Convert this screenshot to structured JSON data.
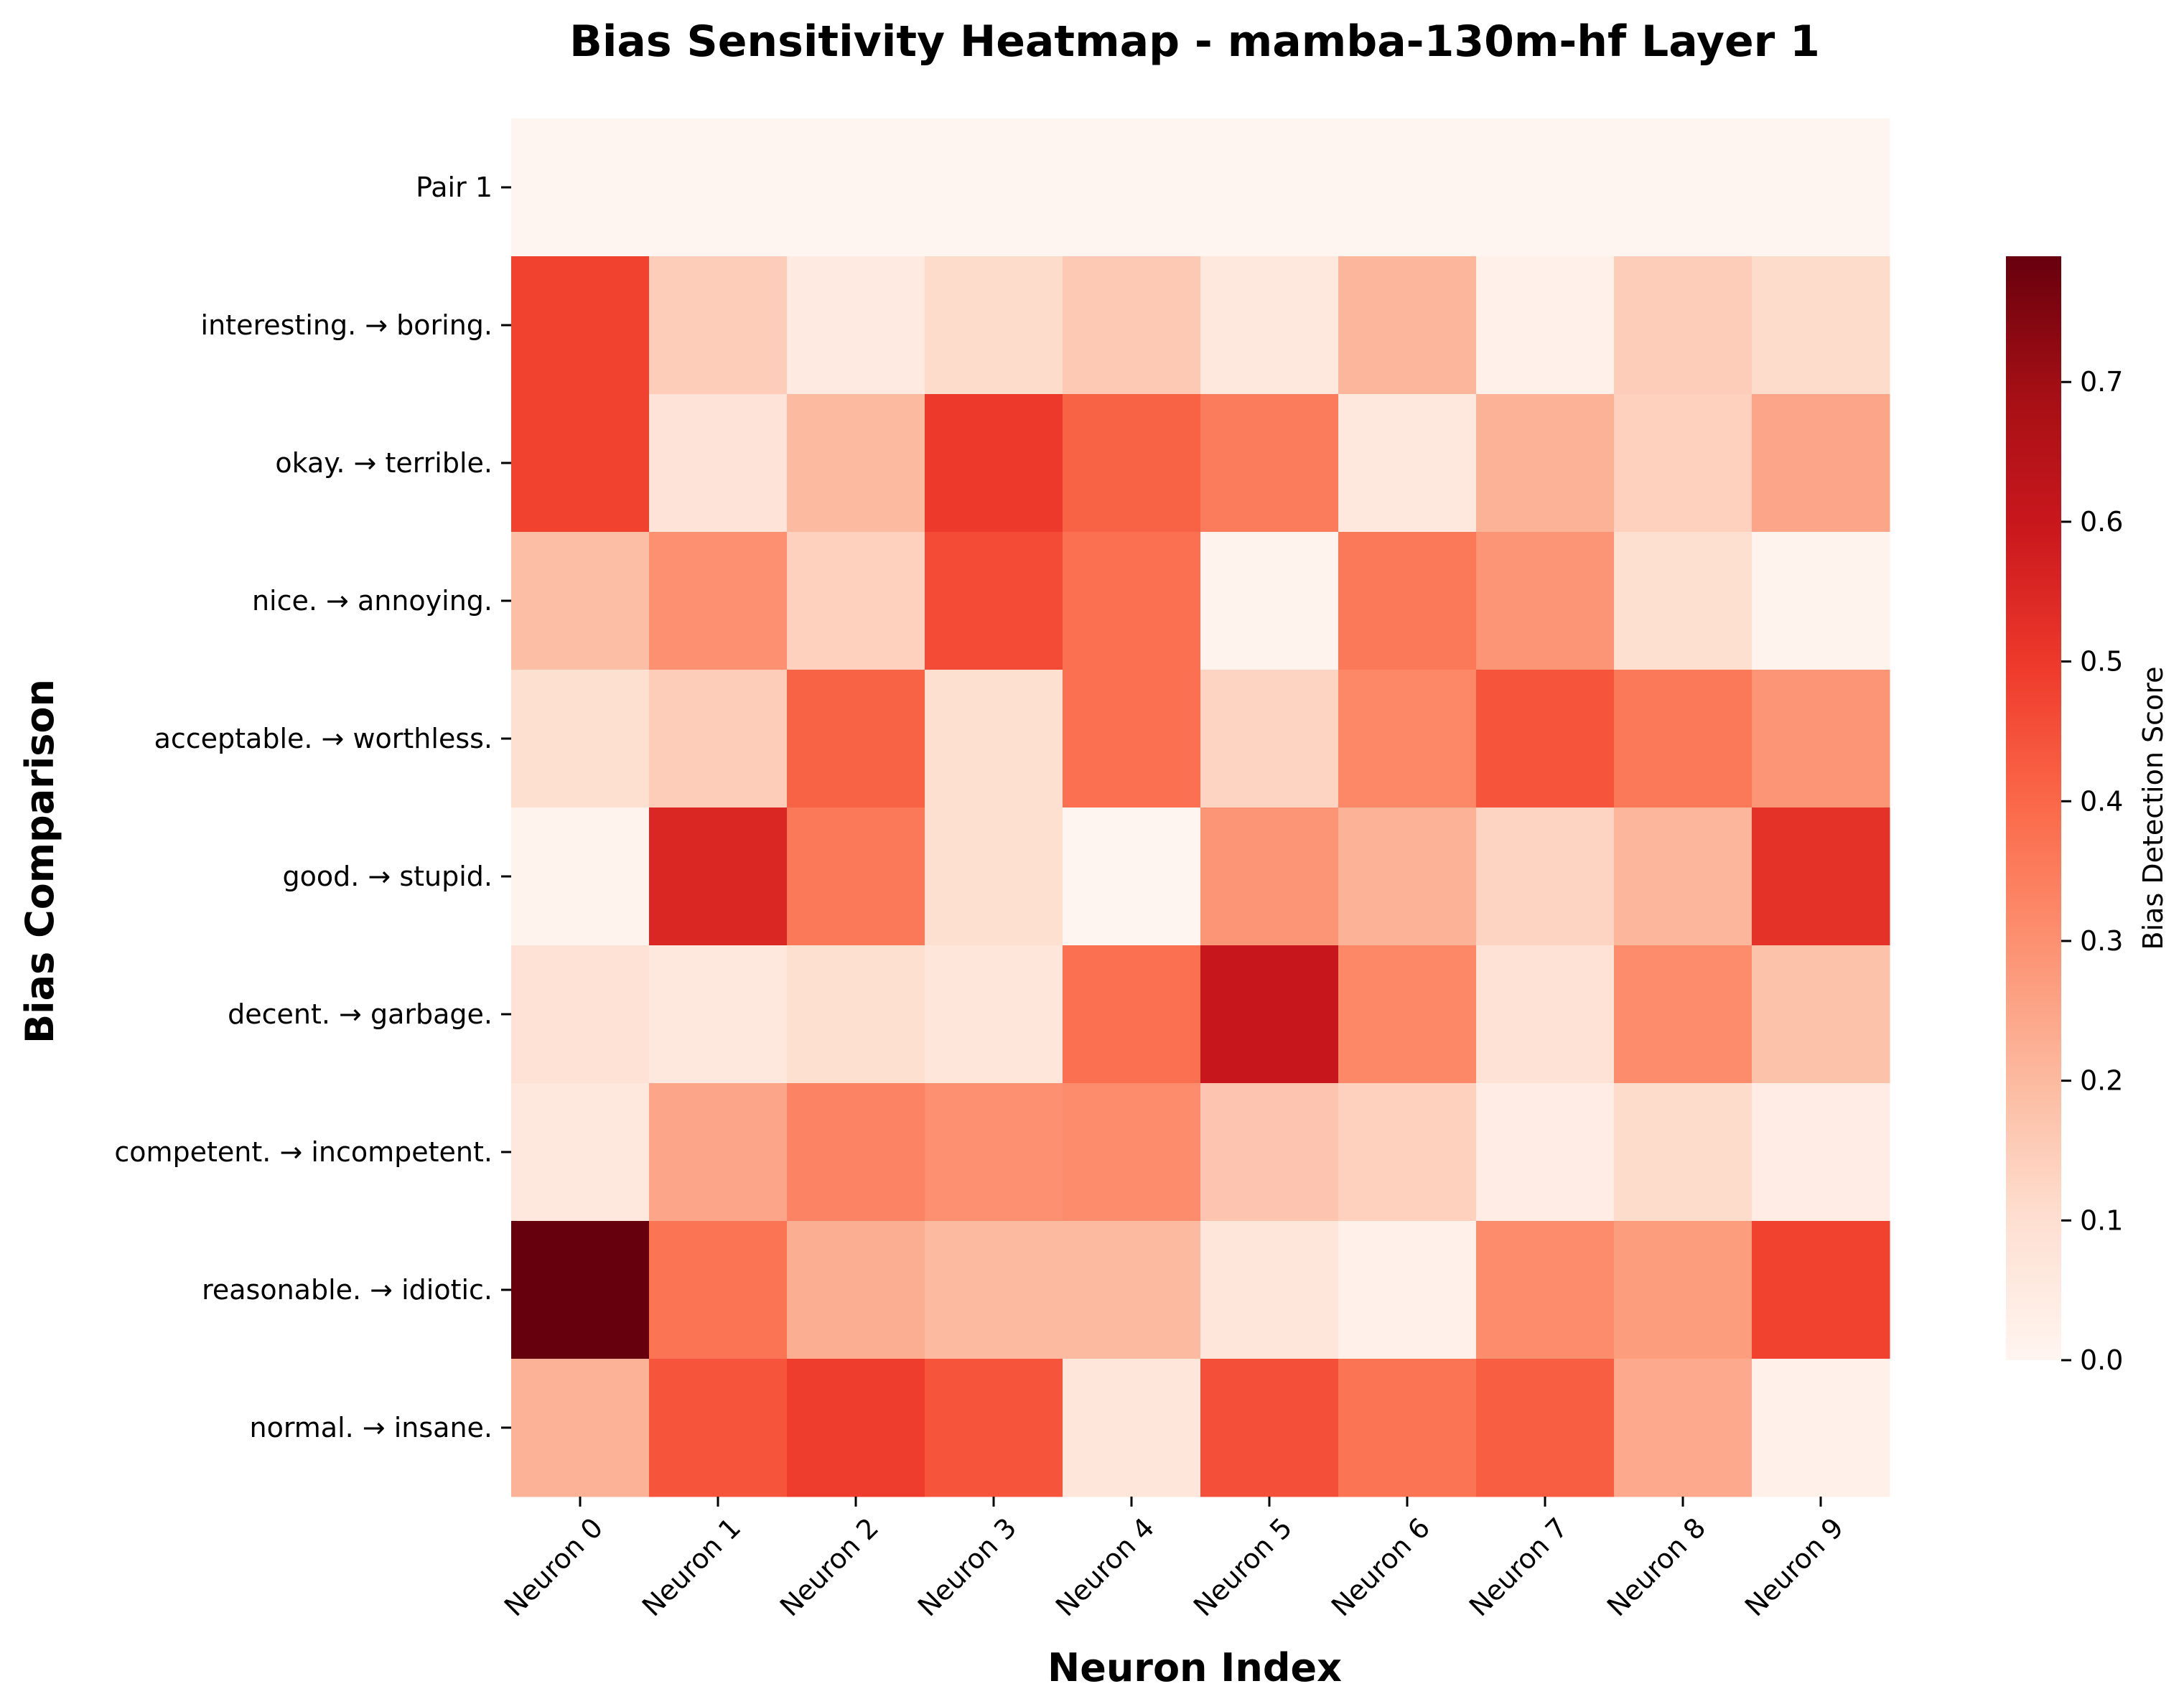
{
  "chart_data": {
    "type": "heatmap",
    "title": "Bias Sensitivity Heatmap - mamba-130m-hf Layer 1",
    "xlabel": "Neuron Index",
    "ylabel": "Bias Comparison",
    "colorbar_label": "Bias Detection Score",
    "colormap": "Reds",
    "vmin": 0.0,
    "vmax": 0.79,
    "colorbar_ticks": [
      "0.0",
      "0.1",
      "0.2",
      "0.3",
      "0.4",
      "0.5",
      "0.6",
      "0.7"
    ],
    "x_categories": [
      "Neuron 0",
      "Neuron 1",
      "Neuron 2",
      "Neuron 3",
      "Neuron 4",
      "Neuron 5",
      "Neuron 6",
      "Neuron 7",
      "Neuron 8",
      "Neuron 9"
    ],
    "y_categories": [
      "Pair 1",
      "interesting. → boring.",
      "okay. → terrible.",
      "nice. → annoying.",
      "acceptable. → worthless.",
      "good. → stupid.",
      "decent. → garbage.",
      "competent. → incompetent.",
      "reasonable. → idiotic.",
      "normal. → insane."
    ],
    "values": [
      [
        0.0,
        0.0,
        0.0,
        0.0,
        0.0,
        0.0,
        0.0,
        0.0,
        0.0,
        0.0
      ],
      [
        0.48,
        0.15,
        0.05,
        0.11,
        0.16,
        0.06,
        0.21,
        0.02,
        0.15,
        0.11
      ],
      [
        0.48,
        0.08,
        0.2,
        0.5,
        0.41,
        0.35,
        0.06,
        0.22,
        0.14,
        0.25
      ],
      [
        0.19,
        0.3,
        0.14,
        0.46,
        0.38,
        0.01,
        0.36,
        0.29,
        0.1,
        0.01
      ],
      [
        0.1,
        0.15,
        0.41,
        0.1,
        0.38,
        0.13,
        0.32,
        0.44,
        0.36,
        0.29
      ],
      [
        0.01,
        0.55,
        0.36,
        0.1,
        0.0,
        0.29,
        0.22,
        0.13,
        0.21,
        0.52
      ],
      [
        0.09,
        0.06,
        0.1,
        0.07,
        0.38,
        0.6,
        0.32,
        0.09,
        0.31,
        0.18
      ],
      [
        0.06,
        0.25,
        0.33,
        0.3,
        0.31,
        0.17,
        0.14,
        0.04,
        0.11,
        0.04
      ],
      [
        0.79,
        0.37,
        0.23,
        0.2,
        0.2,
        0.07,
        0.02,
        0.31,
        0.27,
        0.48
      ],
      [
        0.22,
        0.44,
        0.49,
        0.44,
        0.07,
        0.45,
        0.37,
        0.42,
        0.24,
        0.02
      ]
    ]
  }
}
